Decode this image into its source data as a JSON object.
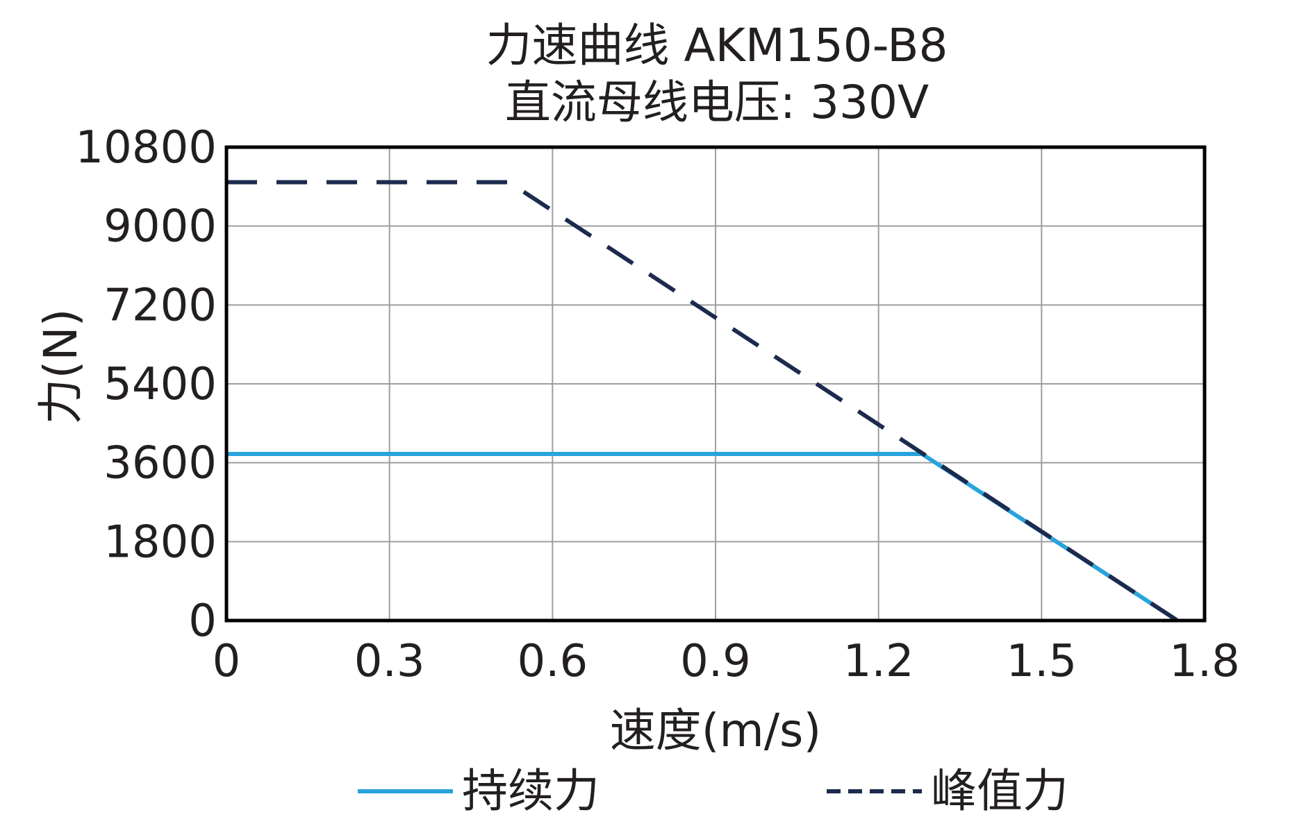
{
  "chart_data": {
    "type": "line",
    "title_lines": [
      "力速曲线 AKM150-B8",
      "直流母线电压: 330V"
    ],
    "xlabel": "速度(m/s)",
    "ylabel": "力(N)",
    "xlim": [
      0,
      1.8
    ],
    "ylim": [
      0,
      10800
    ],
    "x_ticks": [
      0,
      0.3,
      0.6,
      0.9,
      1.2,
      1.5,
      1.8
    ],
    "x_tick_labels": [
      "0",
      "0.3",
      "0.6",
      "0.9",
      "1.2",
      "1.5",
      "1.8"
    ],
    "y_ticks": [
      0,
      1800,
      3600,
      5400,
      7200,
      9000,
      10800
    ],
    "y_tick_labels": [
      "0",
      "1800",
      "3600",
      "5400",
      "7200",
      "9000",
      "10800"
    ],
    "grid": true,
    "legend_position": "bottom",
    "series": [
      {
        "name": "持续力",
        "style": "solid",
        "color": "#29a3dc",
        "x": [
          0,
          1.28,
          1.75
        ],
        "y": [
          3800,
          3800,
          0
        ]
      },
      {
        "name": "峰值力",
        "style": "dashed",
        "color": "#1c2a4d",
        "x": [
          0,
          0.52,
          1.75
        ],
        "y": [
          10000,
          10000,
          0
        ]
      }
    ]
  }
}
